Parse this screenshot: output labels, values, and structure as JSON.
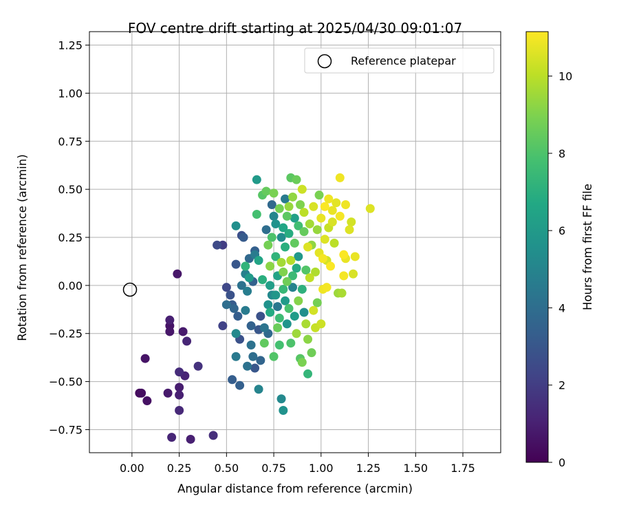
{
  "chart_data": {
    "type": "scatter",
    "title": "FOV centre drift starting at 2025/04/30 09:01:07",
    "xlabel": "Angular distance from reference (arcmin)",
    "ylabel": "Rotation from reference (arcmin)",
    "colorbar_label": "Hours from first FF file",
    "xlim": [
      -0.225,
      1.95
    ],
    "ylim": [
      -0.87,
      1.32
    ],
    "xticks": [
      "0.00",
      "0.25",
      "0.50",
      "0.75",
      "1.00",
      "1.25",
      "1.50",
      "1.75"
    ],
    "yticks": [
      "−0.75",
      "−0.50",
      "−0.25",
      "0.00",
      "0.25",
      "0.50",
      "0.75",
      "1.00",
      "1.25"
    ],
    "colorbar_range": [
      0,
      11.15
    ],
    "colorbar_ticks": [
      "0",
      "2",
      "4",
      "6",
      "8",
      "10"
    ],
    "colormap": "viridis",
    "grid": true,
    "legend": {
      "placement": "top-right",
      "entries": [
        "Reference platepar"
      ]
    },
    "reference_point": {
      "x": 0.0,
      "y": 0.0
    },
    "points": [
      {
        "x": 0.04,
        "y": -0.56,
        "h": 0.3
      },
      {
        "x": 0.05,
        "y": -0.56,
        "h": 0.4
      },
      {
        "x": 0.08,
        "y": -0.6,
        "h": 0.5
      },
      {
        "x": 0.07,
        "y": -0.38,
        "h": 0.6
      },
      {
        "x": 0.2,
        "y": -0.21,
        "h": 0.6
      },
      {
        "x": 0.2,
        "y": -0.24,
        "h": 0.7
      },
      {
        "x": 0.2,
        "y": -0.18,
        "h": 1.0
      },
      {
        "x": 0.19,
        "y": -0.56,
        "h": 0.8
      },
      {
        "x": 0.21,
        "y": -0.79,
        "h": 1.2
      },
      {
        "x": 0.24,
        "y": 0.06,
        "h": 0.7
      },
      {
        "x": 0.25,
        "y": -0.53,
        "h": 0.9
      },
      {
        "x": 0.25,
        "y": -0.57,
        "h": 1.0
      },
      {
        "x": 0.25,
        "y": -0.65,
        "h": 1.3
      },
      {
        "x": 0.25,
        "y": -0.45,
        "h": 1.4
      },
      {
        "x": 0.27,
        "y": -0.24,
        "h": 0.8
      },
      {
        "x": 0.28,
        "y": -0.47,
        "h": 1.1
      },
      {
        "x": 0.29,
        "y": -0.29,
        "h": 1.2
      },
      {
        "x": 0.31,
        "y": -0.8,
        "h": 1.0
      },
      {
        "x": 0.35,
        "y": -0.42,
        "h": 1.6
      },
      {
        "x": 0.43,
        "y": -0.78,
        "h": 1.5
      },
      {
        "x": 0.45,
        "y": 0.21,
        "h": 2.5
      },
      {
        "x": 0.48,
        "y": 0.21,
        "h": 2.0
      },
      {
        "x": 0.48,
        "y": -0.21,
        "h": 2.2
      },
      {
        "x": 0.5,
        "y": -0.1,
        "h": 4.0
      },
      {
        "x": 0.5,
        "y": -0.01,
        "h": 2.4
      },
      {
        "x": 0.52,
        "y": -0.05,
        "h": 2.8
      },
      {
        "x": 0.53,
        "y": -0.1,
        "h": 3.2
      },
      {
        "x": 0.53,
        "y": -0.49,
        "h": 3.3
      },
      {
        "x": 0.54,
        "y": -0.12,
        "h": 3.6
      },
      {
        "x": 0.55,
        "y": -0.25,
        "h": 5.2
      },
      {
        "x": 0.55,
        "y": -0.37,
        "h": 4.5
      },
      {
        "x": 0.55,
        "y": 0.31,
        "h": 5.5
      },
      {
        "x": 0.55,
        "y": 0.11,
        "h": 3.0
      },
      {
        "x": 0.56,
        "y": -0.16,
        "h": 3.3
      },
      {
        "x": 0.57,
        "y": -0.28,
        "h": 2.8
      },
      {
        "x": 0.57,
        "y": -0.52,
        "h": 3.4
      },
      {
        "x": 0.58,
        "y": 0.0,
        "h": 4.2
      },
      {
        "x": 0.58,
        "y": 0.26,
        "h": 2.7
      },
      {
        "x": 0.59,
        "y": 0.25,
        "h": 3.2
      },
      {
        "x": 0.6,
        "y": 0.06,
        "h": 4.8
      },
      {
        "x": 0.6,
        "y": -0.13,
        "h": 4.6
      },
      {
        "x": 0.6,
        "y": 0.1,
        "h": 7.2
      },
      {
        "x": 0.61,
        "y": -0.42,
        "h": 4.2
      },
      {
        "x": 0.61,
        "y": -0.03,
        "h": 4.7
      },
      {
        "x": 0.62,
        "y": 0.04,
        "h": 6.0
      },
      {
        "x": 0.62,
        "y": 0.14,
        "h": 3.8
      },
      {
        "x": 0.63,
        "y": -0.21,
        "h": 3.5
      },
      {
        "x": 0.63,
        "y": -0.31,
        "h": 4.2
      },
      {
        "x": 0.64,
        "y": 0.02,
        "h": 3.5
      },
      {
        "x": 0.64,
        "y": -0.37,
        "h": 4.0
      },
      {
        "x": 0.65,
        "y": -0.43,
        "h": 3.0
      },
      {
        "x": 0.65,
        "y": 0.16,
        "h": 4.6
      },
      {
        "x": 0.65,
        "y": 0.18,
        "h": 3.4
      },
      {
        "x": 0.66,
        "y": 0.37,
        "h": 7.8
      },
      {
        "x": 0.66,
        "y": 0.55,
        "h": 6.0
      },
      {
        "x": 0.67,
        "y": -0.54,
        "h": 5.0
      },
      {
        "x": 0.67,
        "y": 0.13,
        "h": 6.5
      },
      {
        "x": 0.67,
        "y": -0.23,
        "h": 3.0
      },
      {
        "x": 0.68,
        "y": -0.39,
        "h": 3.6
      },
      {
        "x": 0.68,
        "y": -0.16,
        "h": 2.8
      },
      {
        "x": 0.69,
        "y": 0.03,
        "h": 7.0
      },
      {
        "x": 0.69,
        "y": 0.47,
        "h": 8.2
      },
      {
        "x": 0.7,
        "y": -0.22,
        "h": 4.3
      },
      {
        "x": 0.7,
        "y": -0.3,
        "h": 8.4
      },
      {
        "x": 0.71,
        "y": 0.49,
        "h": 8.5
      },
      {
        "x": 0.71,
        "y": 0.29,
        "h": 4.0
      },
      {
        "x": 0.72,
        "y": -0.25,
        "h": 3.8
      },
      {
        "x": 0.72,
        "y": -0.1,
        "h": 5.6
      },
      {
        "x": 0.72,
        "y": 0.21,
        "h": 8.8
      },
      {
        "x": 0.73,
        "y": 0.0,
        "h": 6.2
      },
      {
        "x": 0.73,
        "y": -0.14,
        "h": 6.8
      },
      {
        "x": 0.73,
        "y": 0.1,
        "h": 9.2
      },
      {
        "x": 0.74,
        "y": 0.25,
        "h": 8.0
      },
      {
        "x": 0.74,
        "y": 0.42,
        "h": 3.8
      },
      {
        "x": 0.74,
        "y": -0.05,
        "h": 5.2
      },
      {
        "x": 0.75,
        "y": -0.37,
        "h": 8.1
      },
      {
        "x": 0.75,
        "y": 0.36,
        "h": 5.1
      },
      {
        "x": 0.75,
        "y": 0.48,
        "h": 8.9
      },
      {
        "x": 0.76,
        "y": -0.05,
        "h": 5.8
      },
      {
        "x": 0.76,
        "y": 0.15,
        "h": 7.2
      },
      {
        "x": 0.76,
        "y": 0.32,
        "h": 5.6
      },
      {
        "x": 0.77,
        "y": -0.11,
        "h": 4.4
      },
      {
        "x": 0.77,
        "y": -0.22,
        "h": 8.6
      },
      {
        "x": 0.77,
        "y": 0.05,
        "h": 6.4
      },
      {
        "x": 0.78,
        "y": 0.4,
        "h": 8.8
      },
      {
        "x": 0.78,
        "y": -0.17,
        "h": 7.6
      },
      {
        "x": 0.78,
        "y": -0.31,
        "h": 7.8
      },
      {
        "x": 0.79,
        "y": 0.25,
        "h": 5.4
      },
      {
        "x": 0.79,
        "y": -0.59,
        "h": 5.2
      },
      {
        "x": 0.79,
        "y": 0.12,
        "h": 9.6
      },
      {
        "x": 0.8,
        "y": 0.07,
        "h": 9.0
      },
      {
        "x": 0.8,
        "y": -0.65,
        "h": 5.6
      },
      {
        "x": 0.8,
        "y": 0.3,
        "h": 6.6
      },
      {
        "x": 0.8,
        "y": -0.02,
        "h": 7.4
      },
      {
        "x": 0.81,
        "y": 0.45,
        "h": 4.6
      },
      {
        "x": 0.81,
        "y": 0.2,
        "h": 7.0
      },
      {
        "x": 0.81,
        "y": -0.08,
        "h": 6.0
      },
      {
        "x": 0.82,
        "y": 0.36,
        "h": 8.3
      },
      {
        "x": 0.82,
        "y": -0.2,
        "h": 5.7
      },
      {
        "x": 0.82,
        "y": 0.02,
        "h": 8.7
      },
      {
        "x": 0.83,
        "y": 0.27,
        "h": 6.9
      },
      {
        "x": 0.83,
        "y": -0.12,
        "h": 7.9
      },
      {
        "x": 0.83,
        "y": 0.41,
        "h": 9.4
      },
      {
        "x": 0.84,
        "y": 0.56,
        "h": 8.3
      },
      {
        "x": 0.84,
        "y": -0.3,
        "h": 8.0
      },
      {
        "x": 0.84,
        "y": 0.13,
        "h": 9.9
      },
      {
        "x": 0.85,
        "y": 0.05,
        "h": 7.5
      },
      {
        "x": 0.85,
        "y": -0.01,
        "h": 4.9
      },
      {
        "x": 0.85,
        "y": 0.46,
        "h": 9.3
      },
      {
        "x": 0.86,
        "y": 0.35,
        "h": 6.3
      },
      {
        "x": 0.86,
        "y": -0.16,
        "h": 6.1
      },
      {
        "x": 0.86,
        "y": 0.22,
        "h": 8.4
      },
      {
        "x": 0.87,
        "y": 0.55,
        "h": 8.6
      },
      {
        "x": 0.87,
        "y": -0.25,
        "h": 9.5
      },
      {
        "x": 0.87,
        "y": 0.09,
        "h": 6.8
      },
      {
        "x": 0.88,
        "y": 0.31,
        "h": 7.7
      },
      {
        "x": 0.88,
        "y": -0.08,
        "h": 9.1
      },
      {
        "x": 0.88,
        "y": 0.15,
        "h": 5.9
      },
      {
        "x": 0.89,
        "y": -0.38,
        "h": 8.2
      },
      {
        "x": 0.89,
        "y": 0.42,
        "h": 9.0
      },
      {
        "x": 0.9,
        "y": -0.4,
        "h": 8.9
      },
      {
        "x": 0.9,
        "y": 0.5,
        "h": 10.3
      },
      {
        "x": 0.9,
        "y": -0.02,
        "h": 7.1
      },
      {
        "x": 0.91,
        "y": 0.28,
        "h": 8.5
      },
      {
        "x": 0.91,
        "y": -0.14,
        "h": 5.5
      },
      {
        "x": 0.91,
        "y": 0.38,
        "h": 10.0
      },
      {
        "x": 0.92,
        "y": -0.2,
        "h": 9.7
      },
      {
        "x": 0.92,
        "y": 0.08,
        "h": 8.1
      },
      {
        "x": 0.93,
        "y": -0.46,
        "h": 7.3
      },
      {
        "x": 0.93,
        "y": 0.2,
        "h": 10.6
      },
      {
        "x": 0.93,
        "y": -0.28,
        "h": 9.2
      },
      {
        "x": 0.94,
        "y": 0.32,
        "h": 9.6
      },
      {
        "x": 0.94,
        "y": 0.04,
        "h": 10.1
      },
      {
        "x": 0.95,
        "y": -0.35,
        "h": 8.7
      },
      {
        "x": 0.95,
        "y": 0.21,
        "h": 9.3
      },
      {
        "x": 0.96,
        "y": -0.13,
        "h": 10.4
      },
      {
        "x": 0.96,
        "y": 0.41,
        "h": 10.5
      },
      {
        "x": 0.97,
        "y": 0.07,
        "h": 9.8
      },
      {
        "x": 0.97,
        "y": -0.22,
        "h": 10.2
      },
      {
        "x": 0.98,
        "y": 0.29,
        "h": 9.4
      },
      {
        "x": 0.98,
        "y": -0.09,
        "h": 8.8
      },
      {
        "x": 0.99,
        "y": 0.47,
        "h": 8.9
      },
      {
        "x": 0.99,
        "y": 0.17,
        "h": 10.7
      },
      {
        "x": 1.0,
        "y": -0.2,
        "h": 10.3
      },
      {
        "x": 1.0,
        "y": 0.35,
        "h": 10.8
      },
      {
        "x": 1.01,
        "y": 0.14,
        "h": 11.0
      },
      {
        "x": 1.01,
        "y": -0.02,
        "h": 10.9
      },
      {
        "x": 1.02,
        "y": 0.41,
        "h": 11.1
      },
      {
        "x": 1.02,
        "y": 0.24,
        "h": 10.6
      },
      {
        "x": 1.03,
        "y": -0.01,
        "h": 11.0
      },
      {
        "x": 1.03,
        "y": 0.13,
        "h": 10.4
      },
      {
        "x": 1.04,
        "y": 0.45,
        "h": 10.9
      },
      {
        "x": 1.04,
        "y": 0.3,
        "h": 10.2
      },
      {
        "x": 1.05,
        "y": 0.1,
        "h": 11.1
      },
      {
        "x": 1.06,
        "y": 0.39,
        "h": 10.8
      },
      {
        "x": 1.06,
        "y": 0.33,
        "h": 10.5
      },
      {
        "x": 1.07,
        "y": 0.22,
        "h": 10.0
      },
      {
        "x": 1.08,
        "y": 0.43,
        "h": 10.7
      },
      {
        "x": 1.09,
        "y": -0.04,
        "h": 9.5
      },
      {
        "x": 1.1,
        "y": 0.56,
        "h": 10.9
      },
      {
        "x": 1.1,
        "y": 0.36,
        "h": 11.0
      },
      {
        "x": 1.11,
        "y": -0.04,
        "h": 9.7
      },
      {
        "x": 1.12,
        "y": 0.16,
        "h": 11.1
      },
      {
        "x": 1.12,
        "y": 0.05,
        "h": 11.0
      },
      {
        "x": 1.13,
        "y": 0.42,
        "h": 10.9
      },
      {
        "x": 1.13,
        "y": 0.14,
        "h": 10.8
      },
      {
        "x": 1.15,
        "y": 0.29,
        "h": 10.6
      },
      {
        "x": 1.16,
        "y": 0.33,
        "h": 10.4
      },
      {
        "x": 1.17,
        "y": 0.06,
        "h": 10.5
      },
      {
        "x": 1.18,
        "y": 0.15,
        "h": 10.8
      },
      {
        "x": 1.26,
        "y": 0.4,
        "h": 10.6
      }
    ]
  }
}
